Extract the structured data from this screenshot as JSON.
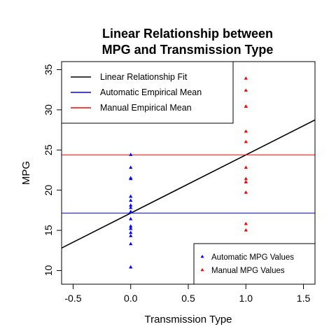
{
  "chart_data": {
    "type": "scatter",
    "title_lines": [
      "Linear Relationship between",
      "MPG and Transmission Type"
    ],
    "xlabel": "Transmission Type",
    "ylabel": "MPG",
    "xlim": [
      -0.6,
      1.6
    ],
    "ylim": [
      8.3,
      36
    ],
    "x_ticks": [
      -0.5,
      0.0,
      0.5,
      1.0,
      1.5
    ],
    "x_tick_labels": [
      "-0.5",
      "0.0",
      "0.5",
      "1.0",
      "1.5"
    ],
    "y_ticks": [
      10,
      15,
      20,
      25,
      30,
      35
    ],
    "y_tick_labels": [
      "10",
      "15",
      "20",
      "25",
      "30",
      "35"
    ],
    "grid": false,
    "series": [
      {
        "name": "Automatic MPG Values",
        "color": "#0000ff",
        "marker": "triangle",
        "points": [
          [
            0,
            21.4
          ],
          [
            0,
            18.7
          ],
          [
            0,
            18.1
          ],
          [
            0,
            14.3
          ],
          [
            0,
            24.4
          ],
          [
            0,
            22.8
          ],
          [
            0,
            19.2
          ],
          [
            0,
            17.8
          ],
          [
            0,
            16.4
          ],
          [
            0,
            17.3
          ],
          [
            0,
            15.2
          ],
          [
            0,
            10.4
          ],
          [
            0,
            10.4
          ],
          [
            0,
            14.7
          ],
          [
            0,
            21.5
          ],
          [
            0,
            15.5
          ],
          [
            0,
            15.2
          ],
          [
            0,
            13.3
          ],
          [
            0,
            19.2
          ]
        ]
      },
      {
        "name": "Manual MPG Values",
        "color": "#ff0000",
        "marker": "triangle",
        "points": [
          [
            1,
            21.0
          ],
          [
            1,
            21.0
          ],
          [
            1,
            22.8
          ],
          [
            1,
            32.4
          ],
          [
            1,
            30.4
          ],
          [
            1,
            33.9
          ],
          [
            1,
            27.3
          ],
          [
            1,
            26.0
          ],
          [
            1,
            30.4
          ],
          [
            1,
            15.8
          ],
          [
            1,
            19.7
          ],
          [
            1,
            15.0
          ],
          [
            1,
            21.4
          ]
        ]
      }
    ],
    "lines": [
      {
        "name": "Linear Relationship Fit",
        "kind": "abline",
        "intercept": 17.147,
        "slope": 7.245,
        "color": "#000000"
      },
      {
        "name": "Automatic Empirical Mean",
        "kind": "hline",
        "y": 17.147,
        "color": "#0000ff"
      },
      {
        "name": "Manual Empirical Mean",
        "kind": "hline",
        "y": 24.392,
        "color": "#ff0000"
      }
    ],
    "legends": [
      {
        "position": "top-left",
        "entries": [
          {
            "label": "Linear Relationship Fit",
            "color": "#000000",
            "symbol": "line"
          },
          {
            "label": "Automatic Empirical Mean",
            "color": "#0000ff",
            "symbol": "line"
          },
          {
            "label": "Manual Empirical Mean",
            "color": "#ff0000",
            "symbol": "line"
          }
        ]
      },
      {
        "position": "bottom-right",
        "entries": [
          {
            "label": "Automatic MPG Values",
            "color": "#0000ff",
            "symbol": "triangle"
          },
          {
            "label": "Manual MPG Values",
            "color": "#ff0000",
            "symbol": "triangle"
          }
        ]
      }
    ]
  }
}
